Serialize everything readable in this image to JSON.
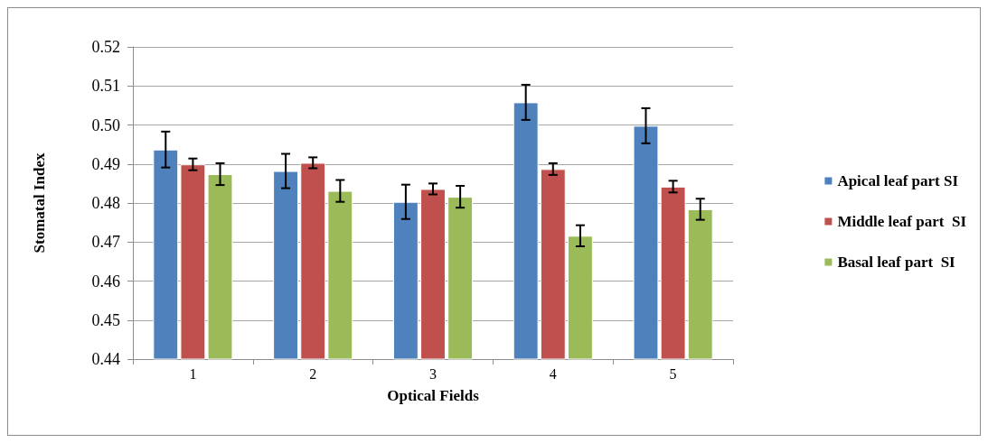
{
  "chart_data": {
    "type": "bar",
    "xlabel": "Optical Fields",
    "ylabel": "Stomatal Index",
    "categories": [
      "1",
      "2",
      "3",
      "4",
      "5"
    ],
    "series": [
      {
        "name": "Apical leaf part SI",
        "color": "#4f81bd",
        "values": [
          0.4937,
          0.4882,
          0.4803,
          0.5058,
          0.4998
        ],
        "errors": [
          0.0046,
          0.0044,
          0.0044,
          0.0045,
          0.0045
        ]
      },
      {
        "name": "Middle leaf part  SI",
        "color": "#c0504d",
        "values": [
          0.4899,
          0.4903,
          0.4836,
          0.4887,
          0.4842
        ],
        "errors": [
          0.0015,
          0.0014,
          0.0014,
          0.0015,
          0.0015
        ]
      },
      {
        "name": "Basal leaf part  SI",
        "color": "#9bbb59",
        "values": [
          0.4874,
          0.4831,
          0.4816,
          0.4716,
          0.4784
        ],
        "errors": [
          0.0028,
          0.0028,
          0.0028,
          0.0027,
          0.0027
        ]
      }
    ],
    "ylim": [
      0.44,
      0.52
    ],
    "yticks": [
      0.44,
      0.45,
      0.46,
      0.47,
      0.48,
      0.49,
      {
        "value": 0.5,
        "label": "0.50"
      },
      0.51,
      0.52
    ],
    "grid": "y",
    "legend": "right"
  }
}
